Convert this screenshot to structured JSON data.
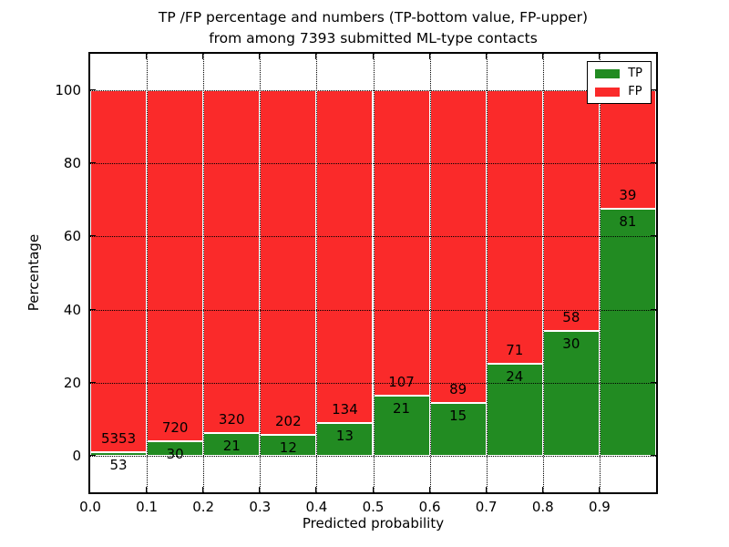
{
  "title": {
    "line1": "TP /FP percentage and numbers (TP-bottom value, FP-upper)",
    "line2": "from among 7393 submitted ML-type contacts"
  },
  "chart_data": {
    "type": "bar",
    "stacked": true,
    "note": "Each bin bar is normalized to 100%; green TP share on bottom, red FP share on top; annotated numbers are raw counts (TP bottom value, FP upper).",
    "total_contacts": 7393,
    "bins": {
      "start": 0.0,
      "width": 0.1,
      "count": 10
    },
    "series": [
      {
        "name": "TP",
        "color": "#228b22",
        "counts": [
          53,
          30,
          21,
          12,
          13,
          21,
          15,
          24,
          30,
          81
        ]
      },
      {
        "name": "FP",
        "color": "#fa2a2a",
        "counts": [
          5353,
          720,
          320,
          202,
          134,
          107,
          89,
          71,
          58,
          39
        ]
      }
    ],
    "xlabel": "Predicted probability",
    "ylabel": "Percentage",
    "xlim": [
      0.0,
      1.0
    ],
    "ylim": [
      -10,
      110
    ],
    "xticks": [
      "0.0",
      "0.1",
      "0.2",
      "0.3",
      "0.4",
      "0.5",
      "0.6",
      "0.7",
      "0.8",
      "0.9"
    ],
    "yticks": [
      0,
      20,
      40,
      60,
      80,
      100
    ],
    "grid": {
      "style": "dotted",
      "color": "#000000",
      "on": true
    },
    "bar_edge_color": "#ffffff",
    "legend": {
      "position": "upper-right",
      "entries": [
        {
          "label": "TP",
          "color": "#228b22"
        },
        {
          "label": "FP",
          "color": "#fa2a2a"
        }
      ]
    }
  }
}
